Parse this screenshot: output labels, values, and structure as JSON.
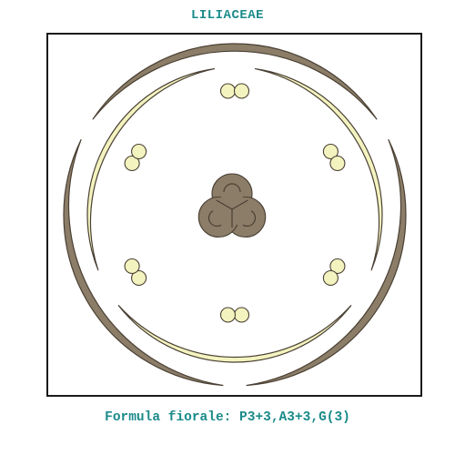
{
  "title": "LILIACEAE",
  "formula": "Formula fiorale: P3+3,A3+3,G(3)",
  "colors": {
    "title_text": "#1b8a8a",
    "outer_tepals": "#8b7d67",
    "inner_tepals": "#f3f3bf",
    "outline": "#4a4034",
    "anthers": "#f3f3bf",
    "ovary": "#8b7d67",
    "frame": "#1a1a1a"
  }
}
